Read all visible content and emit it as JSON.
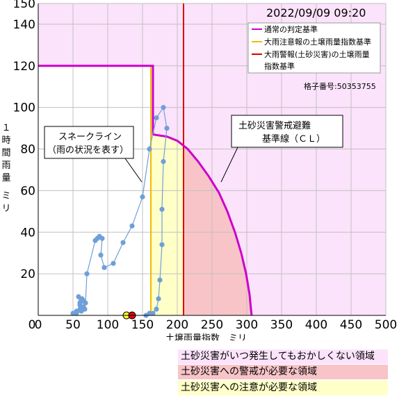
{
  "chart_data": {
    "type": "scatter",
    "title": "",
    "timestamp": "2022/09/09 09:20",
    "xlabel": "土壌雨量指数　ミリ",
    "ylabel": "１時間雨量　ミリ",
    "xlim": [
      0,
      500
    ],
    "ylim": [
      0,
      150
    ],
    "x_ticks": [
      0,
      50,
      100,
      150,
      200,
      250,
      300,
      350,
      400,
      450,
      500
    ],
    "y_ticks": [
      20,
      40,
      60,
      80,
      100,
      120,
      140,
      150
    ],
    "grid": true,
    "legend": {
      "placement": "top-right",
      "items": [
        {
          "label": "通常の判定基準",
          "color": "#cc00cc"
        },
        {
          "label": "大雨注意報の土壌雨量指数基準",
          "color": "#f5b800"
        },
        {
          "label": "大雨警報(土砂災害)の土壌雨量指数基準",
          "color": "#dd0000"
        }
      ]
    },
    "grid_number": "格子番号:50353755",
    "judgment_line": {
      "name": "通常の判定基準",
      "color": "#cc00cc",
      "points": [
        [
          0,
          120
        ],
        [
          165,
          120
        ],
        [
          165,
          87
        ],
        [
          185,
          86
        ],
        [
          200,
          84
        ],
        [
          215,
          80
        ],
        [
          230,
          74
        ],
        [
          245,
          67
        ],
        [
          260,
          59
        ],
        [
          272,
          50
        ],
        [
          283,
          40
        ],
        [
          292,
          30
        ],
        [
          299,
          20
        ],
        [
          304,
          10
        ],
        [
          306,
          3
        ],
        [
          307,
          0
        ]
      ]
    },
    "advisory_threshold": {
      "x": 162,
      "color": "#f5b800"
    },
    "warning_threshold": {
      "x": 209,
      "color": "#dd0000"
    },
    "snake_line": {
      "name": "スネークライン",
      "color": "#6e9fd8",
      "points": [
        [
          50,
          1
        ],
        [
          55,
          2
        ],
        [
          60,
          3
        ],
        [
          58,
          9
        ],
        [
          60,
          6
        ],
        [
          65,
          4
        ],
        [
          62,
          2
        ],
        [
          55,
          1
        ],
        [
          60,
          5
        ],
        [
          65,
          7
        ],
        [
          63,
          8
        ],
        [
          67,
          3
        ],
        [
          68,
          6
        ],
        [
          70,
          20
        ],
        [
          82,
          36
        ],
        [
          88,
          38
        ],
        [
          85,
          37
        ],
        [
          92,
          37
        ],
        [
          90,
          29
        ],
        [
          95,
          23
        ],
        [
          108,
          25
        ],
        [
          122,
          35
        ],
        [
          135,
          43
        ],
        [
          150,
          57
        ],
        [
          160,
          80
        ],
        [
          170,
          95
        ],
        [
          180,
          100
        ],
        [
          185,
          90
        ],
        [
          180,
          74
        ],
        [
          178,
          51
        ],
        [
          178,
          34
        ],
        [
          175,
          17
        ],
        [
          173,
          8
        ],
        [
          170,
          3
        ],
        [
          165,
          1
        ],
        [
          160,
          1
        ],
        [
          155,
          0
        ]
      ]
    },
    "current_points": [
      {
        "x": 127,
        "y": 0,
        "color": "#ffff33"
      },
      {
        "x": 135,
        "y": 0,
        "color": "#ee0000"
      }
    ],
    "annotations": [
      {
        "text": "スネークライン",
        "line2": "（雨の状況を表す）"
      },
      {
        "text": "土砂災害警戒避難",
        "line2": "基準線（ＣＬ）"
      }
    ],
    "regions": [
      {
        "label": "土砂災害がいつ発生してもおかしくない領域",
        "color": "#fbe3fb"
      },
      {
        "label": "土砂災害への警戒が必要な領域",
        "color": "#f8c4c8"
      },
      {
        "label": "土砂災害への注意が必要な領域",
        "color": "#ffffc8"
      }
    ],
    "colors": {
      "occurrence": "#fbe3fb",
      "warning": "#f8c4c8",
      "advisory": "#ffffc8",
      "grid": "#c0c0c0"
    }
  }
}
